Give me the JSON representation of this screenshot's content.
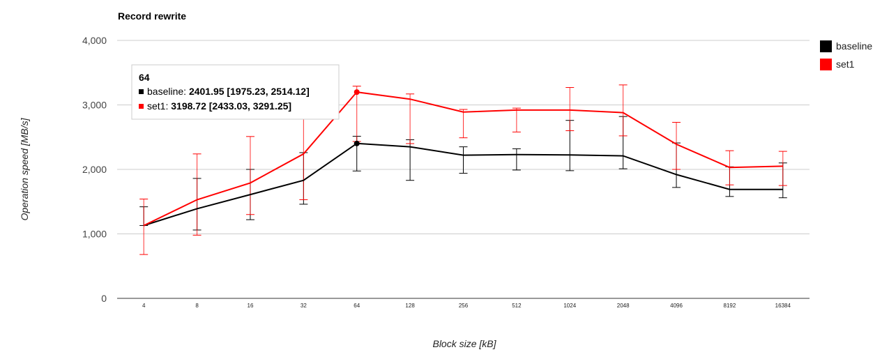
{
  "chart_data": {
    "type": "line",
    "title": "Record rewrite",
    "xlabel": "Block size [kB]",
    "ylabel": "Operation speed [MB/s]",
    "categories": [
      "4",
      "8",
      "16",
      "32",
      "64",
      "128",
      "256",
      "512",
      "1024",
      "2048",
      "4096",
      "8192",
      "16384"
    ],
    "ylim": [
      0,
      4000
    ],
    "yticks": [
      0,
      1000,
      2000,
      3000,
      4000
    ],
    "ytick_labels": [
      "0",
      "1,000",
      "2,000",
      "3,000",
      "4,000"
    ],
    "grid": true,
    "legend_position": "right",
    "series": [
      {
        "name": "baseline",
        "color": "#000000",
        "values": [
          1130,
          1390,
          1610,
          1830,
          2401.95,
          2350,
          2220,
          2230,
          2225,
          2210,
          1920,
          1690,
          1690
        ],
        "low": [
          1130,
          1060,
          1220,
          1460,
          1975.23,
          1830,
          1940,
          1990,
          1980,
          2010,
          1720,
          1580,
          1560
        ],
        "high": [
          1420,
          1860,
          2000,
          2260,
          2514.12,
          2460,
          2350,
          2320,
          2760,
          2820,
          2410,
          2040,
          2100
        ]
      },
      {
        "name": "set1",
        "color": "#ff0000",
        "values": [
          1130,
          1530,
          1790,
          2240,
          3198.72,
          3090,
          2890,
          2920,
          2920,
          2880,
          2390,
          2030,
          2050
        ],
        "low": [
          680,
          980,
          1300,
          1530,
          2433.03,
          2400,
          2490,
          2580,
          2600,
          2520,
          2000,
          1760,
          1750
        ],
        "high": [
          1540,
          2240,
          2510,
          2900,
          3291.25,
          3170,
          2930,
          2950,
          3270,
          3310,
          2730,
          2290,
          2280
        ]
      }
    ],
    "tooltip": {
      "title": "64",
      "rows": [
        {
          "label": "baseline: ",
          "value": "2401.95 [1975.23, 2514.12]",
          "color": "#000000"
        },
        {
          "label": "set1: ",
          "value": "3198.72 [2433.03, 3291.25]",
          "color": "#ff0000"
        }
      ]
    },
    "highlight_index": 4
  }
}
